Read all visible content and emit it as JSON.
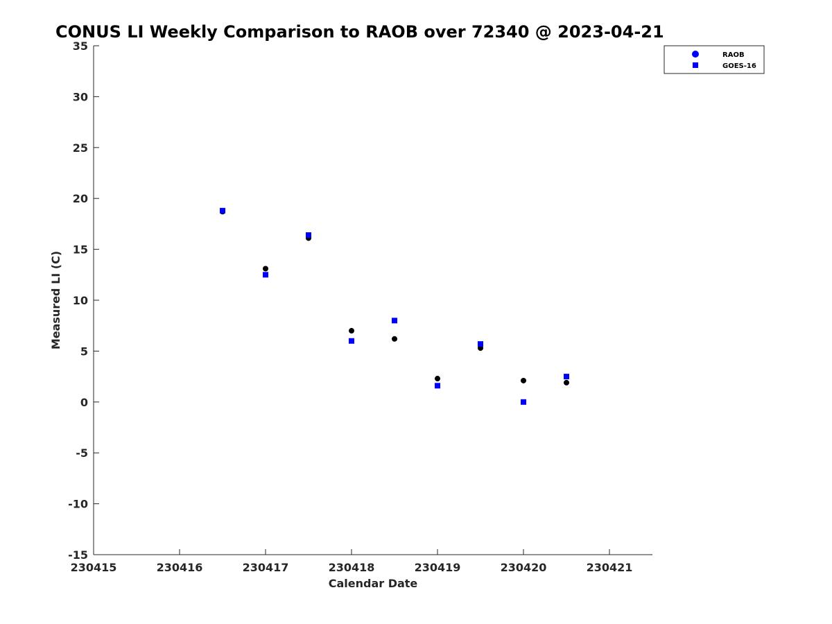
{
  "chart_data": {
    "type": "scatter",
    "title": "CONUS LI Weekly Comparison to RAOB over 72340 @ 2023-04-21",
    "xlabel": "Calendar Date",
    "ylabel": "Measured LI (C)",
    "xlim": [
      230415,
      230421.5
    ],
    "ylim": [
      -15,
      35
    ],
    "xticks": [
      230415,
      230416,
      230417,
      230418,
      230419,
      230420,
      230421
    ],
    "xtick_labels": [
      "230415",
      "230416",
      "230417",
      "230418",
      "230419",
      "230420",
      "230421"
    ],
    "yticks": [
      -15,
      -10,
      -5,
      0,
      5,
      10,
      15,
      20,
      25,
      30,
      35
    ],
    "ytick_labels": [
      "-15",
      "-10",
      "-5",
      "0",
      "5",
      "10",
      "15",
      "20",
      "25",
      "30",
      "35"
    ],
    "grid": false,
    "legend_position": "top-right",
    "series": [
      {
        "name": "RAOB",
        "marker": "circle",
        "legend_color": "#0000ff",
        "point_color": "#000000",
        "x": [
          230416.5,
          230417.0,
          230417.5,
          230418.0,
          230418.5,
          230419.0,
          230419.5,
          230420.0,
          230420.5
        ],
        "y": [
          18.7,
          13.1,
          16.1,
          7.0,
          6.2,
          2.3,
          5.3,
          2.1,
          1.9
        ]
      },
      {
        "name": "GOES-16",
        "marker": "square",
        "legend_color": "#0000ff",
        "point_color": "#0000ff",
        "x": [
          230416.5,
          230417.0,
          230417.5,
          230418.0,
          230418.5,
          230419.0,
          230419.5,
          230420.0,
          230420.5
        ],
        "y": [
          18.8,
          12.5,
          16.4,
          6.0,
          8.0,
          1.6,
          5.7,
          0.0,
          2.5
        ]
      }
    ]
  }
}
